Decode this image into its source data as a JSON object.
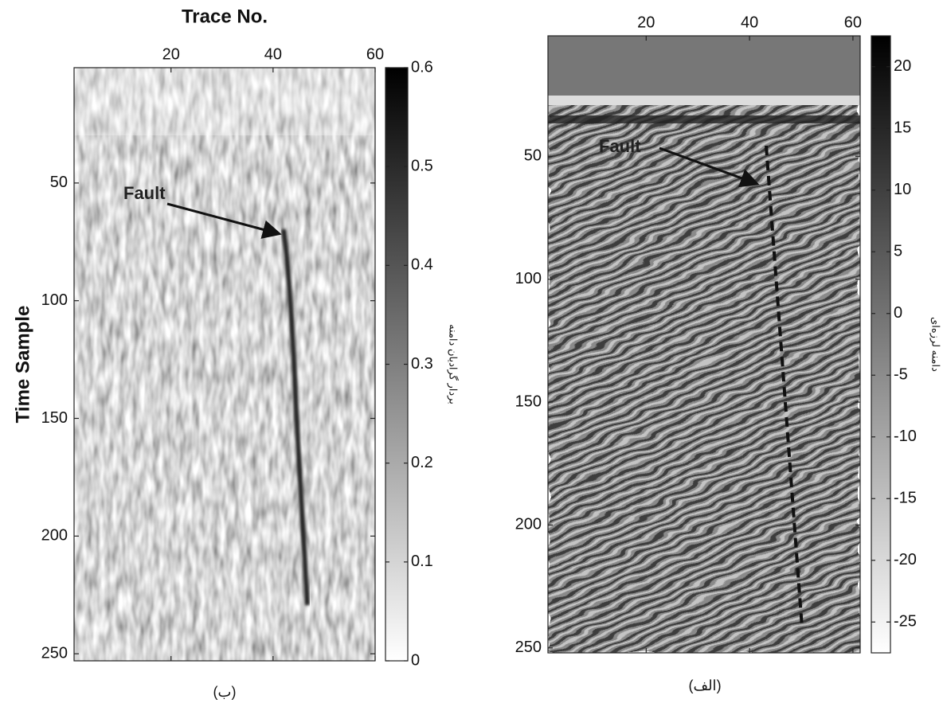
{
  "chart_data": [
    {
      "type": "heatmap",
      "title": "Trace No.",
      "ylabel": "Time Sample",
      "xlim": [
        1,
        60
      ],
      "xticks": [
        20,
        40,
        60
      ],
      "ylim": [
        1,
        253
      ],
      "yticks": [
        50,
        100,
        150,
        200,
        250
      ],
      "colorbar": {
        "lim": [
          0,
          0.6
        ],
        "ticks": [
          0,
          0.1,
          0.2,
          0.3,
          0.4,
          0.5,
          0.6
        ],
        "label": "بردار گرادیان دامنه"
      },
      "annotation": "Fault",
      "caption": "(ب)"
    },
    {
      "type": "heatmap",
      "xlim": [
        1,
        61.4
      ],
      "xticks": [
        20,
        40,
        60
      ],
      "ylim": [
        1,
        252
      ],
      "yticks": [
        50,
        100,
        150,
        200,
        250
      ],
      "colorbar": {
        "lim": [
          -27.5,
          22.5
        ],
        "ticks": [
          -25,
          -20,
          -15,
          -10,
          -5,
          0,
          5,
          10,
          15,
          20
        ],
        "label": "دامنه لرزه‌ای"
      },
      "annotation": "Fault",
      "caption": "(الف)"
    }
  ]
}
